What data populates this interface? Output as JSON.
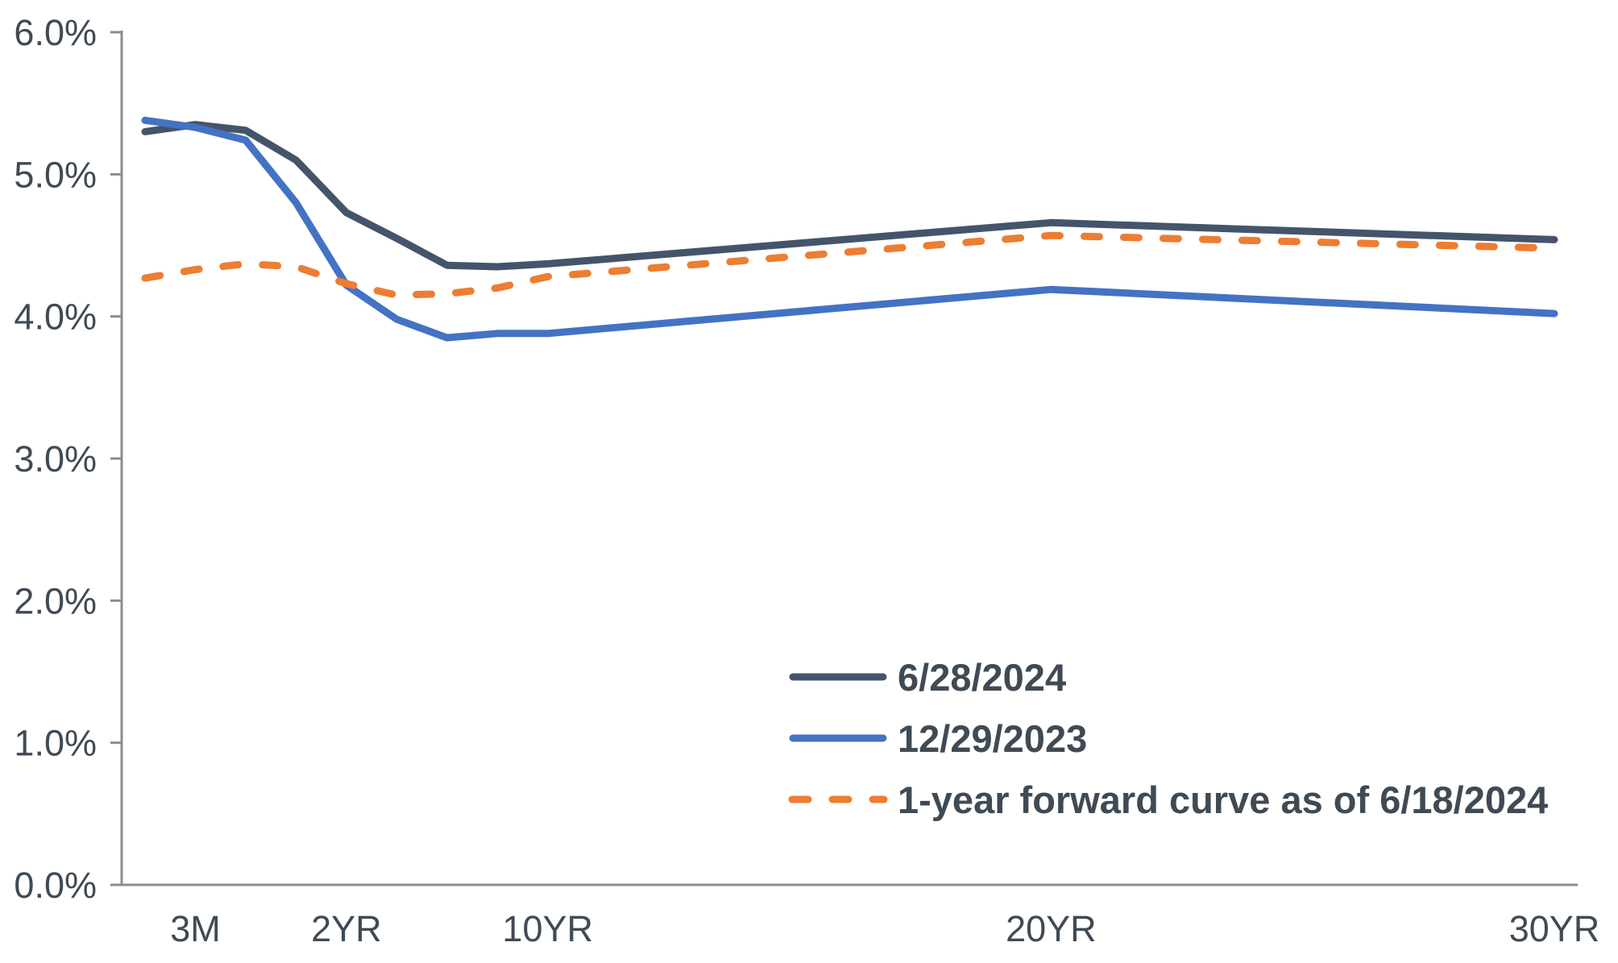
{
  "chart_data": {
    "type": "line",
    "title": "",
    "xlabel": "",
    "ylabel": "",
    "grid": false,
    "legend_position": "inside-lower-right",
    "ylim": [
      0,
      6
    ],
    "ytick_values": [
      0,
      1,
      2,
      3,
      4,
      5,
      6
    ],
    "ytick_labels": [
      "0.0%",
      "1.0%",
      "2.0%",
      "3.0%",
      "4.0%",
      "5.0%",
      "6.0%"
    ],
    "categories": [
      "",
      "3M",
      "",
      "",
      "2YR",
      "",
      "",
      "",
      "10YR",
      "20YR",
      "30YR"
    ],
    "category_slots": [
      0,
      1,
      2,
      3,
      4,
      5,
      6,
      7,
      8,
      18,
      28
    ],
    "total_slots": 28,
    "series": [
      {
        "name": "6/28/2024",
        "color": "#44546A",
        "dash": false,
        "values": [
          5.3,
          5.35,
          5.31,
          5.1,
          4.73,
          4.55,
          4.36,
          4.35,
          4.37,
          4.66,
          4.54
        ]
      },
      {
        "name": "12/29/2023",
        "color": "#4472C4",
        "dash": false,
        "values": [
          5.38,
          5.33,
          5.24,
          4.8,
          4.22,
          3.98,
          3.85,
          3.88,
          3.88,
          4.19,
          4.02
        ]
      },
      {
        "name": "1-year forward curve as of 6/18/2024",
        "color": "#ED7D31",
        "dash": true,
        "values": [
          4.27,
          4.33,
          4.37,
          4.35,
          4.23,
          4.15,
          4.16,
          4.2,
          4.28,
          4.57,
          4.48
        ]
      }
    ]
  },
  "colors": {
    "text": "#3F4A54",
    "axis": "#8C8C8C",
    "background": "#FFFFFF"
  }
}
